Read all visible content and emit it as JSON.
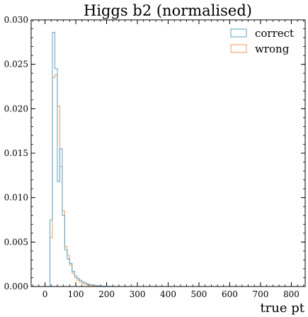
{
  "chart_data": {
    "type": "histogram",
    "title": "Higgs b2 (normalised)",
    "xlabel": "true pt",
    "ylabel": "",
    "xlim": [
      -45,
      845
    ],
    "ylim": [
      0,
      0.03
    ],
    "xticks": [
      0,
      100,
      200,
      300,
      400,
      500,
      600,
      700,
      800
    ],
    "xtick_labels": [
      "0",
      "100",
      "200",
      "300",
      "400",
      "500",
      "600",
      "700",
      "800"
    ],
    "yticks": [
      0.0,
      0.005,
      0.01,
      0.015,
      0.02,
      0.025,
      0.03
    ],
    "ytick_labels": [
      "0.000",
      "0.005",
      "0.010",
      "0.015",
      "0.020",
      "0.025",
      "0.030"
    ],
    "legend_position": "top-right",
    "bin_width": 8,
    "bin_start": 16,
    "series": [
      {
        "name": "correct",
        "color": "#6aa8c6",
        "values": [
          0.0075,
          0.0286,
          0.0245,
          0.0118,
          0.0155,
          0.008,
          0.0041,
          0.0031,
          0.0026,
          0.0017,
          0.0012,
          0.0009,
          0.0007,
          0.0005,
          0.0004,
          0.0003,
          0.00022,
          0.00016,
          0.00012,
          9e-05,
          7e-05,
          5e-05,
          4e-05,
          3e-05,
          2e-05,
          2e-05,
          1e-05
        ]
      },
      {
        "name": "wrong",
        "color": "#f0a36a",
        "values": [
          0.0055,
          0.0235,
          0.0238,
          0.0203,
          0.0135,
          0.0085,
          0.0045,
          0.0035,
          0.0024,
          0.0015,
          0.001,
          0.0007,
          0.0005,
          0.00035,
          0.00025,
          0.00018,
          0.00012,
          9e-05,
          6e-05,
          4e-05,
          3e-05,
          2e-05,
          2e-05,
          1e-05,
          1e-05,
          1e-05,
          0.0
        ]
      }
    ]
  }
}
